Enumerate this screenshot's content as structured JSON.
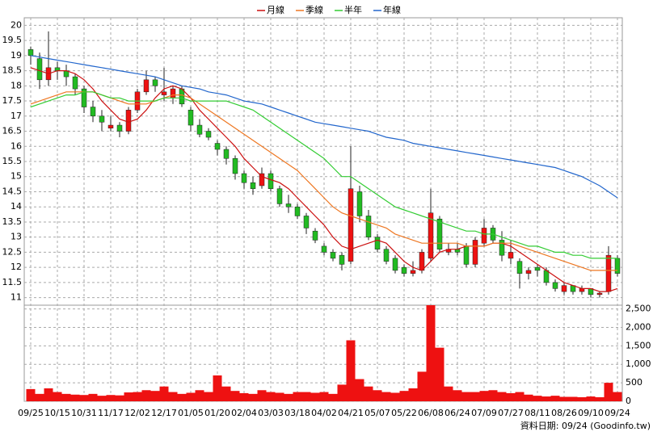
{
  "chart_data": {
    "type": "candlestick",
    "categories": [
      "09/25",
      null,
      null,
      "10/15",
      null,
      null,
      "10/31",
      null,
      null,
      "11/17",
      null,
      null,
      "12/02",
      null,
      null,
      "12/17",
      null,
      null,
      "01/05",
      null,
      null,
      "01/20",
      null,
      null,
      "02/04",
      null,
      null,
      "03/03",
      null,
      null,
      "03/18",
      null,
      null,
      "04/02",
      null,
      null,
      "04/21",
      null,
      null,
      "05/07",
      null,
      null,
      "05/22",
      null,
      null,
      "06/08",
      null,
      null,
      "06/24",
      null,
      null,
      "07/09",
      null,
      null,
      "07/27",
      null,
      null,
      "08/11",
      null,
      null,
      "08/26",
      null,
      null,
      "09/10",
      null,
      null,
      "09/24"
    ],
    "candles": [
      [
        19.2,
        19.3,
        18.7,
        19.0
      ],
      [
        18.9,
        19.1,
        17.9,
        18.2
      ],
      [
        18.2,
        19.8,
        18.0,
        18.6
      ],
      [
        18.6,
        18.8,
        18.2,
        18.5
      ],
      [
        18.5,
        18.7,
        18.0,
        18.3
      ],
      [
        18.3,
        18.4,
        17.7,
        17.9
      ],
      [
        17.9,
        18.0,
        17.1,
        17.3
      ],
      [
        17.3,
        17.5,
        16.8,
        17.0
      ],
      [
        17.0,
        17.2,
        16.5,
        16.8
      ],
      [
        16.6,
        17.0,
        16.5,
        16.7
      ],
      [
        16.7,
        16.8,
        16.3,
        16.5
      ],
      [
        16.5,
        17.3,
        16.4,
        17.2
      ],
      [
        17.2,
        17.9,
        17.1,
        17.8
      ],
      [
        17.8,
        18.5,
        17.7,
        18.2
      ],
      [
        18.2,
        18.3,
        17.8,
        18.0
      ],
      [
        17.7,
        18.6,
        17.5,
        17.8
      ],
      [
        17.6,
        18.0,
        17.4,
        17.9
      ],
      [
        17.9,
        18.0,
        17.3,
        17.4
      ],
      [
        17.2,
        17.3,
        16.5,
        16.7
      ],
      [
        16.7,
        16.9,
        16.3,
        16.4
      ],
      [
        16.5,
        16.6,
        16.2,
        16.3
      ],
      [
        16.1,
        16.2,
        15.7,
        15.9
      ],
      [
        15.9,
        16.0,
        15.4,
        15.6
      ],
      [
        15.6,
        15.7,
        14.9,
        15.1
      ],
      [
        15.1,
        15.2,
        14.6,
        14.8
      ],
      [
        14.8,
        15.0,
        14.4,
        14.6
      ],
      [
        14.7,
        15.3,
        14.6,
        15.1
      ],
      [
        15.1,
        15.2,
        14.5,
        14.6
      ],
      [
        14.6,
        14.7,
        14.0,
        14.1
      ],
      [
        14.1,
        14.4,
        13.8,
        14.0
      ],
      [
        14.0,
        14.1,
        13.6,
        13.7
      ],
      [
        13.7,
        13.8,
        13.1,
        13.3
      ],
      [
        13.2,
        13.3,
        12.8,
        12.9
      ],
      [
        12.7,
        12.8,
        12.4,
        12.5
      ],
      [
        12.5,
        12.6,
        12.2,
        12.3
      ],
      [
        12.4,
        12.5,
        11.9,
        12.1
      ],
      [
        12.2,
        16.0,
        12.1,
        14.6
      ],
      [
        14.5,
        14.7,
        13.5,
        13.7
      ],
      [
        13.7,
        13.9,
        12.9,
        13.0
      ],
      [
        13.0,
        13.1,
        12.5,
        12.6
      ],
      [
        12.6,
        12.7,
        12.1,
        12.2
      ],
      [
        12.3,
        12.4,
        11.8,
        11.9
      ],
      [
        12.0,
        12.1,
        11.7,
        11.8
      ],
      [
        11.8,
        12.2,
        11.7,
        11.9
      ],
      [
        11.9,
        12.6,
        11.8,
        12.5
      ],
      [
        12.3,
        14.6,
        12.2,
        13.8
      ],
      [
        13.6,
        13.7,
        12.5,
        12.6
      ],
      [
        12.5,
        12.8,
        12.4,
        12.6
      ],
      [
        12.6,
        12.8,
        12.4,
        12.5
      ],
      [
        12.7,
        12.8,
        12.0,
        12.1
      ],
      [
        12.1,
        13.0,
        12.0,
        12.9
      ],
      [
        12.8,
        13.6,
        12.7,
        13.3
      ],
      [
        13.3,
        13.4,
        12.8,
        12.9
      ],
      [
        12.9,
        13.2,
        12.2,
        12.4
      ],
      [
        12.3,
        12.9,
        12.1,
        12.5
      ],
      [
        12.2,
        12.3,
        11.3,
        11.8
      ],
      [
        11.8,
        12.0,
        11.6,
        11.9
      ],
      [
        12.0,
        12.1,
        11.7,
        11.9
      ],
      [
        11.9,
        12.0,
        11.4,
        11.5
      ],
      [
        11.5,
        11.6,
        11.2,
        11.3
      ],
      [
        11.2,
        11.5,
        11.1,
        11.4
      ],
      [
        11.4,
        11.4,
        11.1,
        11.2
      ],
      [
        11.2,
        11.4,
        11.1,
        11.3
      ],
      [
        11.3,
        11.3,
        11.0,
        11.1
      ],
      [
        11.1,
        11.2,
        11.0,
        11.15
      ],
      [
        11.2,
        12.7,
        11.1,
        12.4
      ],
      [
        12.3,
        12.4,
        11.7,
        11.8
      ]
    ],
    "up_color": "#ee1111",
    "down_color": "#22bb22",
    "ylim": [
      10.75,
      20.25
    ],
    "yticks": [
      11,
      11.5,
      12,
      12.5,
      13,
      13.5,
      14,
      14.5,
      15,
      15.5,
      16,
      16.5,
      17,
      17.5,
      18,
      18.5,
      19,
      19.5,
      20
    ],
    "series": [
      {
        "name": "月線",
        "color": "#cc1111",
        "values": [
          18.6,
          18.5,
          18.4,
          18.5,
          18.5,
          18.4,
          18.2,
          17.9,
          17.5,
          17.2,
          16.9,
          16.8,
          16.9,
          17.2,
          17.6,
          17.9,
          18.0,
          17.9,
          17.6,
          17.2,
          16.9,
          16.6,
          16.3,
          16.0,
          15.6,
          15.3,
          15.0,
          14.9,
          14.8,
          14.6,
          14.3,
          14.0,
          13.7,
          13.4,
          13.0,
          12.7,
          12.6,
          12.7,
          12.8,
          12.9,
          12.8,
          12.5,
          12.2,
          12.0,
          11.9,
          12.2,
          12.5,
          12.6,
          12.6,
          12.7,
          12.7,
          12.7,
          12.8,
          12.8,
          12.7,
          12.5,
          12.3,
          12.1,
          11.9,
          11.7,
          11.5,
          11.4,
          11.3,
          11.3,
          11.2,
          11.2,
          11.3
        ]
      },
      {
        "name": "季線",
        "color": "#ee7722",
        "values": [
          17.4,
          17.5,
          17.6,
          17.7,
          17.8,
          17.8,
          17.8,
          17.8,
          17.7,
          17.6,
          17.5,
          17.4,
          17.4,
          17.4,
          17.5,
          17.6,
          17.7,
          17.7,
          17.6,
          17.4,
          17.2,
          17.0,
          16.8,
          16.6,
          16.4,
          16.2,
          16.0,
          15.8,
          15.6,
          15.4,
          15.2,
          14.9,
          14.6,
          14.3,
          14.0,
          13.8,
          13.7,
          13.6,
          13.5,
          13.4,
          13.3,
          13.1,
          13.0,
          12.9,
          12.8,
          12.8,
          12.8,
          12.8,
          12.8,
          12.7,
          12.7,
          12.7,
          12.8,
          12.8,
          12.8,
          12.7,
          12.6,
          12.5,
          12.4,
          12.3,
          12.2,
          12.1,
          12.0,
          11.9,
          11.9,
          11.9,
          11.9
        ]
      },
      {
        "name": "半年",
        "color": "#33cc33",
        "values": [
          17.3,
          17.4,
          17.5,
          17.6,
          17.7,
          17.7,
          17.8,
          17.8,
          17.7,
          17.6,
          17.6,
          17.5,
          17.5,
          17.5,
          17.5,
          17.6,
          17.6,
          17.6,
          17.5,
          17.5,
          17.5,
          17.5,
          17.5,
          17.4,
          17.3,
          17.2,
          17.0,
          16.8,
          16.6,
          16.4,
          16.2,
          16.0,
          15.8,
          15.6,
          15.3,
          15.0,
          15.0,
          14.8,
          14.6,
          14.4,
          14.2,
          14.0,
          13.9,
          13.8,
          13.7,
          13.6,
          13.5,
          13.4,
          13.3,
          13.2,
          13.2,
          13.1,
          13.1,
          13.0,
          12.9,
          12.8,
          12.7,
          12.7,
          12.6,
          12.5,
          12.5,
          12.4,
          12.4,
          12.3,
          12.3,
          12.3,
          12.3
        ]
      },
      {
        "name": "年線",
        "color": "#2266cc",
        "values": [
          19.0,
          18.95,
          18.9,
          18.85,
          18.8,
          18.75,
          18.7,
          18.65,
          18.6,
          18.55,
          18.5,
          18.45,
          18.4,
          18.35,
          18.3,
          18.2,
          18.1,
          18.0,
          17.95,
          17.9,
          17.8,
          17.75,
          17.7,
          17.6,
          17.5,
          17.45,
          17.4,
          17.3,
          17.2,
          17.1,
          17.0,
          16.9,
          16.8,
          16.75,
          16.7,
          16.65,
          16.6,
          16.55,
          16.5,
          16.4,
          16.3,
          16.25,
          16.2,
          16.1,
          16.05,
          16.0,
          15.95,
          15.9,
          15.85,
          15.8,
          15.75,
          15.7,
          15.65,
          15.6,
          15.55,
          15.5,
          15.45,
          15.4,
          15.35,
          15.3,
          15.2,
          15.1,
          15.0,
          14.85,
          14.7,
          14.5,
          14.3
        ]
      }
    ],
    "volume": {
      "color": "#ee1111",
      "values": [
        330,
        200,
        350,
        250,
        200,
        180,
        170,
        200,
        150,
        170,
        160,
        240,
        250,
        300,
        280,
        400,
        250,
        200,
        230,
        300,
        250,
        700,
        400,
        280,
        220,
        200,
        300,
        250,
        230,
        200,
        250,
        250,
        230,
        250,
        200,
        450,
        1650,
        600,
        400,
        300,
        250,
        230,
        280,
        350,
        800,
        2600,
        1450,
        400,
        300,
        250,
        250,
        280,
        300,
        250,
        220,
        250,
        180,
        150,
        130,
        150,
        120,
        120,
        110,
        130,
        110,
        500,
        250
      ],
      "ylim": [
        0,
        2600
      ],
      "yticks": [
        0,
        500,
        {
          "value": 1000,
          "label": "1,000"
        },
        {
          "value": 1500,
          "label": "1,500"
        },
        {
          "value": 2000,
          "label": "2,000"
        },
        {
          "value": 2500,
          "label": "2,500"
        }
      ]
    },
    "grid": true,
    "footer": "資料日期: 09/24 (Goodinfo.tw)"
  }
}
